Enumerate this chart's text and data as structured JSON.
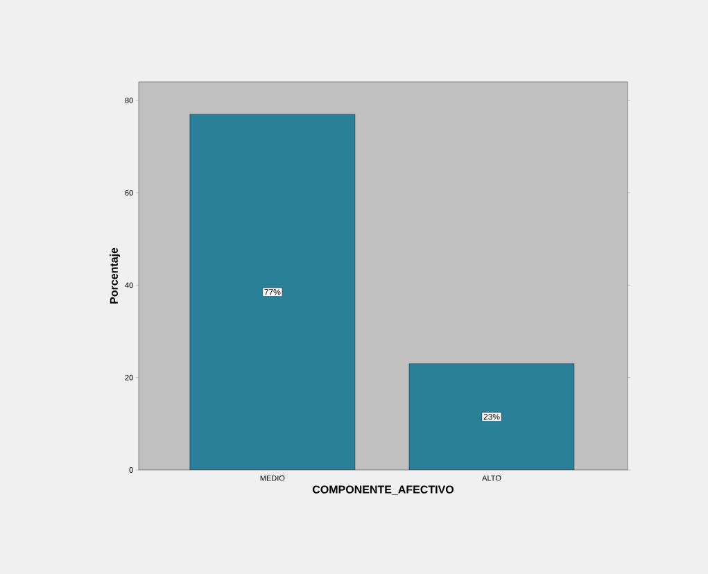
{
  "chart_data": {
    "type": "bar",
    "xlabel": "COMPONENTE_AFECTIVO",
    "ylabel": "Porcentaje",
    "categories": [
      "MEDIO",
      "ALTO"
    ],
    "values": [
      77,
      23
    ],
    "value_labels": [
      "77%",
      "23%"
    ],
    "color": "#2a7f99",
    "ylim": [
      0,
      84
    ],
    "yticks": [
      0,
      20,
      40,
      60,
      80
    ]
  }
}
